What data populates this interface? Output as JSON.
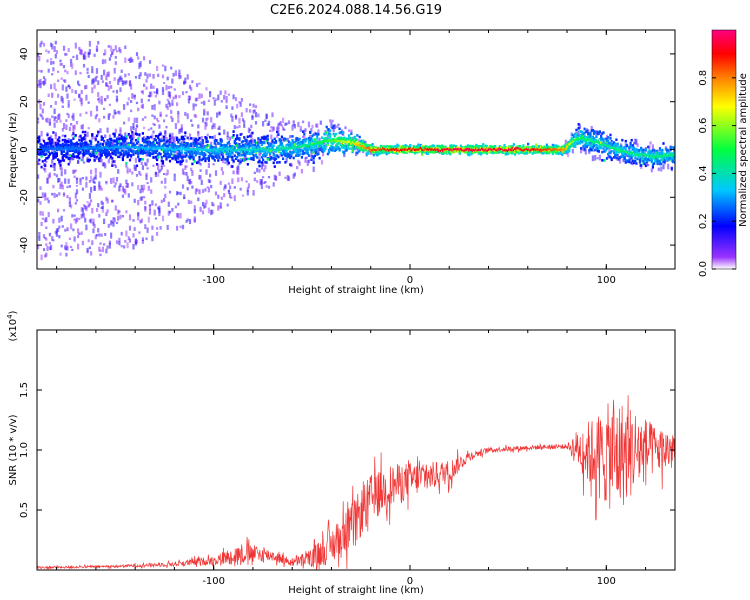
{
  "title": "C2E6.2024.088.14.56.G19",
  "chart_data": [
    {
      "type": "heatmap",
      "xlabel": "Height of straight line (km)",
      "ylabel": "Frequency (Hz)",
      "xlim": [
        -190,
        135
      ],
      "ylim": [
        -50,
        50
      ],
      "xticks": [
        -100,
        0,
        100
      ],
      "yticks": [
        -40,
        -20,
        0,
        20,
        40
      ],
      "colorbar": {
        "label": "Normalized spectral amplitude",
        "range": [
          0,
          1
        ],
        "ticks": [
          "0.0",
          "0.2",
          "0.4",
          "0.6",
          "0.8"
        ],
        "tick_values": [
          0.0,
          0.2,
          0.4,
          0.6,
          0.8
        ]
      },
      "ridge": {
        "x": [
          -190,
          -150,
          -110,
          -70,
          -50,
          -40,
          -30,
          -20,
          -10,
          0,
          10,
          20,
          40,
          60,
          78,
          85,
          95,
          105,
          115,
          125,
          135
        ],
        "frequency": [
          0,
          1,
          0,
          0,
          2,
          4,
          3,
          0,
          0,
          0,
          0,
          0,
          0,
          0,
          0,
          5,
          3,
          0,
          -2,
          -3,
          -2
        ],
        "amplitude": [
          0.25,
          0.3,
          0.35,
          0.4,
          0.45,
          0.55,
          0.7,
          0.85,
          0.9,
          0.9,
          0.9,
          0.95,
          0.95,
          0.92,
          0.8,
          0.5,
          0.45,
          0.45,
          0.45,
          0.45,
          0.45
        ],
        "spread_hz": [
          45,
          45,
          30,
          15,
          10,
          8,
          5,
          3,
          2,
          2,
          2,
          2,
          2,
          2,
          3,
          6,
          7,
          6,
          6,
          6,
          6
        ]
      }
    },
    {
      "type": "line",
      "xlabel": "Height of straight line (km)",
      "ylabel": "SNR (10 * v/v)",
      "scale_note": "(x10",
      "scale_exp": "4",
      "scale_close": ")",
      "xlim": [
        -190,
        135
      ],
      "ylim": [
        0,
        2.0
      ],
      "xticks": [
        -100,
        0,
        100
      ],
      "yticks": [
        "0.5",
        "1.0",
        "1.5"
      ],
      "ytick_values": [
        0.5,
        1.0,
        1.5
      ],
      "color": "#f03535",
      "series": [
        {
          "x": [
            -190,
            -150,
            -120,
            -100,
            -85,
            -70,
            -60,
            -50,
            -40,
            -30,
            -20,
            -10,
            0,
            10,
            20,
            30,
            40,
            60,
            80,
            85,
            95,
            105,
            115,
            125,
            135
          ],
          "mean": [
            0.02,
            0.03,
            0.05,
            0.08,
            0.14,
            0.12,
            0.06,
            0.1,
            0.2,
            0.35,
            0.6,
            0.7,
            0.75,
            0.78,
            0.82,
            0.95,
            1.0,
            1.02,
            1.03,
            1.02,
            0.95,
            0.95,
            1.0,
            1.0,
            1.0
          ],
          "noise": [
            0.01,
            0.01,
            0.02,
            0.04,
            0.09,
            0.05,
            0.03,
            0.08,
            0.15,
            0.2,
            0.2,
            0.18,
            0.15,
            0.12,
            0.1,
            0.04,
            0.02,
            0.02,
            0.02,
            0.15,
            0.35,
            0.5,
            0.35,
            0.2,
            0.18
          ]
        }
      ]
    }
  ]
}
